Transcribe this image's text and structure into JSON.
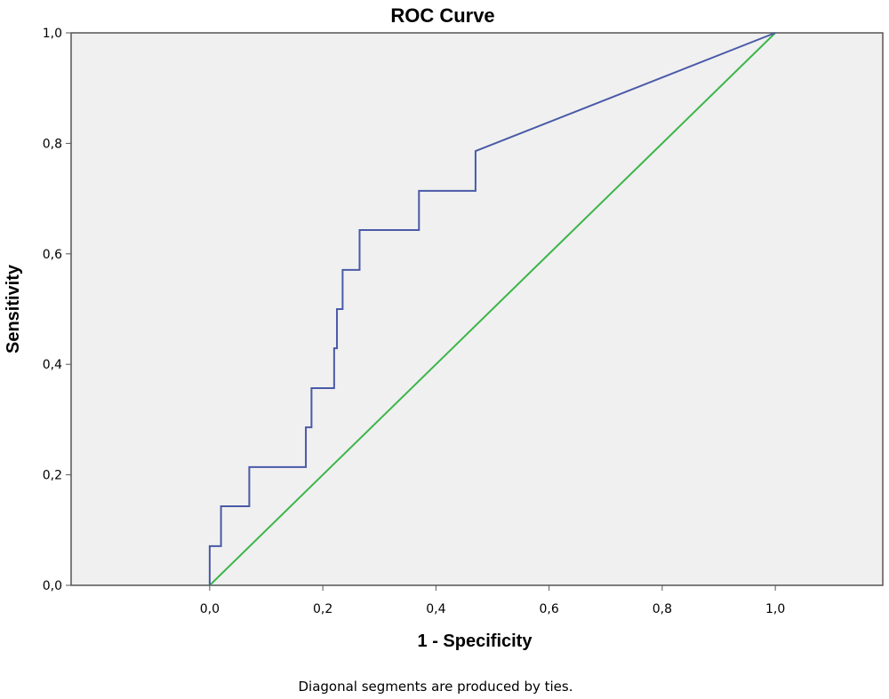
{
  "chart_data": {
    "type": "line",
    "title": "ROC Curve",
    "xlabel": "1 - Specificity",
    "ylabel": "Sensitivity",
    "footnote": "Diagonal segments are produced by ties.",
    "xlim": [
      -0.245,
      1.19
    ],
    "ylim": [
      0,
      1.0
    ],
    "x_ticks": [
      0.0,
      0.2,
      0.4,
      0.6,
      0.8,
      1.0
    ],
    "x_tick_labels": [
      "0,0",
      "0,2",
      "0,4",
      "0,6",
      "0,8",
      "1,0"
    ],
    "y_ticks": [
      0.0,
      0.2,
      0.4,
      0.6,
      0.8,
      1.0
    ],
    "y_tick_labels": [
      "0,0",
      "0,2",
      "0,4",
      "0,6",
      "0,8",
      "1,0"
    ],
    "grid": false,
    "background_color": "#f0f0f0",
    "series": [
      {
        "color": "#4a5aa8",
        "x": [
          0.0,
          0.0,
          0.015,
          0.015,
          0.02,
          0.02,
          0.07,
          0.07,
          0.17,
          0.17,
          0.175,
          0.175,
          0.18,
          0.18,
          0.215,
          0.215,
          0.22,
          0.22,
          0.225,
          0.225,
          0.235,
          0.235,
          0.265,
          0.265,
          0.37,
          0.37,
          0.47,
          0.47,
          1.0
        ],
        "y": [
          0.0,
          0.071,
          0.071,
          0.071,
          0.071,
          0.143,
          0.143,
          0.214,
          0.214,
          0.286,
          0.286,
          0.286,
          0.286,
          0.357,
          0.357,
          0.357,
          0.357,
          0.429,
          0.429,
          0.5,
          0.5,
          0.571,
          0.571,
          0.643,
          0.643,
          0.714,
          0.714,
          0.786,
          1.0
        ]
      },
      {
        "color": "#3cb54a",
        "x": [
          0.0,
          1.0
        ],
        "y": [
          0.0,
          1.0
        ]
      }
    ]
  }
}
